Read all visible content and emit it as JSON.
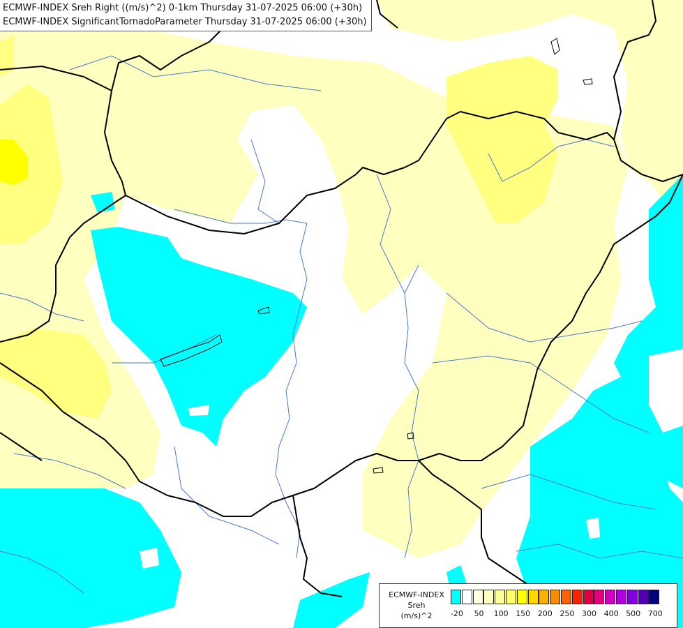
{
  "titles": {
    "line1": "ECMWF-INDEX Sreh Right ((m/s)^2) 0-1km Thursday 31-07-2025 06:00 (+30h)",
    "line2": "ECMWF-INDEX SignificantTornadoParameter Thursday 31-07-2025 06:00 (+30h)"
  },
  "legend": {
    "title": "ECMWF-INDEX",
    "subtitle": "Sreh",
    "unit": "(m/s)^2",
    "colors": [
      "#00ffff",
      "#ffffff",
      "#ffffe0",
      "#ffffc0",
      "#ffff99",
      "#ffff66",
      "#ffff00",
      "#ffd700",
      "#ffb000",
      "#ff8c00",
      "#ff6000",
      "#ff2000",
      "#e00040",
      "#e00080",
      "#d000c0",
      "#b000e0",
      "#8000e0",
      "#5000b0",
      "#000080"
    ],
    "ticks": [
      "-20",
      "50",
      "100",
      "150",
      "200",
      "250",
      "300",
      "400",
      "500",
      "700"
    ]
  },
  "map_colors": {
    "background": "#ffffff",
    "low_shear": "#00ffff",
    "light_yellow": "#ffffc0",
    "yellow": "#ffff80",
    "strong_yellow": "#ffff00",
    "rivers": "#4a78c8",
    "borders": "#000000"
  }
}
